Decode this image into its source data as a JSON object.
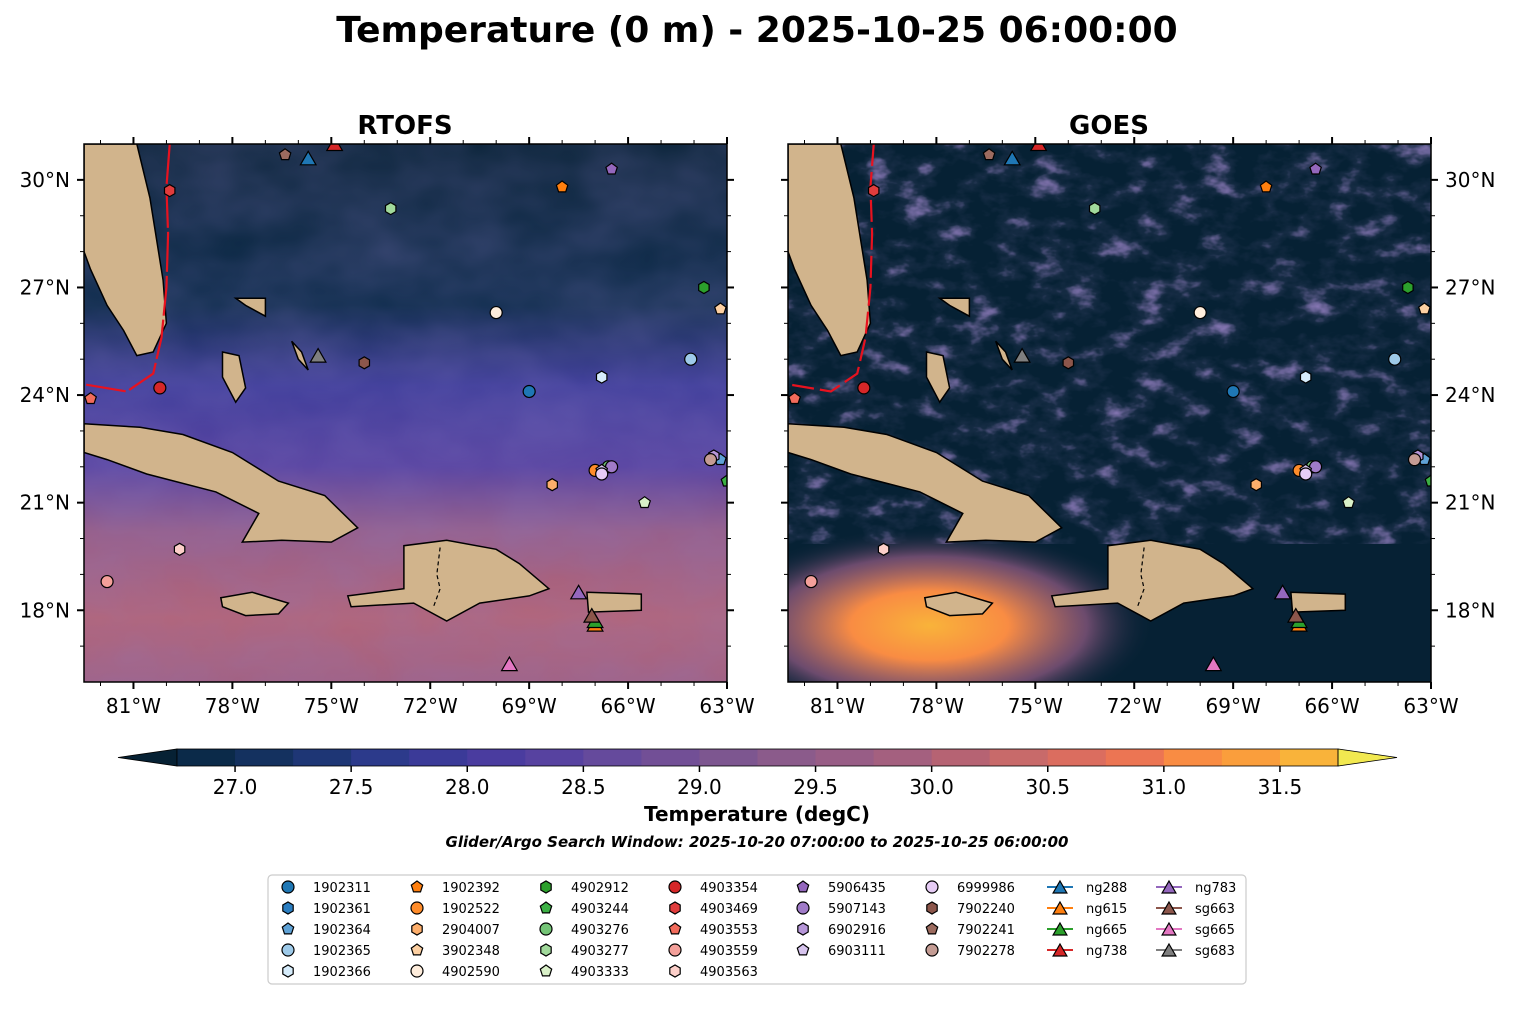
{
  "figure": {
    "title": "Temperature (0 m) - 2025-10-25 06:00:00",
    "search_window": "Glider/Argo Search Window: 2025-10-20 07:00:00 to 2025-10-25 06:00:00"
  },
  "chart_data": {
    "type": "heatmap",
    "panels": [
      {
        "title": "RTOFS",
        "lon_tick_labels": [
          "81°W",
          "78°W",
          "75°W",
          "72°W",
          "69°W",
          "66°W",
          "63°W"
        ],
        "lat_tick_labels": [
          "30°N",
          "27°N",
          "24°N",
          "21°N",
          "18°N"
        ],
        "lat_label_side": "left"
      },
      {
        "title": "GOES",
        "lon_tick_labels": [
          "81°W",
          "78°W",
          "75°W",
          "72°W",
          "69°W",
          "66°W",
          "63°W"
        ],
        "lat_tick_labels": [
          "30°N",
          "27°N",
          "24°N",
          "21°N",
          "18°N"
        ],
        "lat_label_side": "right"
      }
    ],
    "lon_range": [
      -82.5,
      -63.0
    ],
    "lat_range": [
      16.0,
      31.0
    ],
    "lon_ticks": [
      -81,
      -78,
      -75,
      -72,
      -69,
      -66,
      -63
    ],
    "lat_ticks": [
      30,
      27,
      24,
      21,
      18
    ],
    "colorbar": {
      "label": "Temperature (degC)",
      "vmin": 26.75,
      "vmax": 31.75,
      "step": 0.25,
      "extend": "both",
      "tick_values": [
        27.0,
        27.5,
        28.0,
        28.5,
        29.0,
        29.5,
        30.0,
        30.5,
        31.0,
        31.5
      ],
      "tick_labels": [
        "27.0",
        "27.5",
        "28.0",
        "28.5",
        "29.0",
        "29.5",
        "30.0",
        "30.5",
        "31.0",
        "31.5"
      ],
      "colors": [
        "#062134",
        "#0b2a49",
        "#14315f",
        "#1e3675",
        "#2c3a8b",
        "#3b3a98",
        "#4a3c9f",
        "#5742a0",
        "#654a9c",
        "#724f96",
        "#7d5690",
        "#8b5b8b",
        "#985d86",
        "#a4607f",
        "#b66373",
        "#c86a6a",
        "#db6d5f",
        "#ec7553",
        "#f98c43",
        "#fa9e3c",
        "#f9b33a",
        "#f7c83e",
        "#f4dc46",
        "#f2e950"
      ]
    },
    "floats": [
      {
        "id": "1902311",
        "lon": -69.0,
        "lat": 24.1,
        "marker": "circle",
        "color": "#1f77b4"
      },
      {
        "id": "1902361",
        "lon": -62.8,
        "lat": 22.3,
        "marker": "hexagon",
        "color": "#2b7ec1"
      },
      {
        "id": "1902364",
        "lon": -63.2,
        "lat": 22.2,
        "marker": "pentagon",
        "color": "#5fa2d6"
      },
      {
        "id": "1902365",
        "lon": -64.1,
        "lat": 25.0,
        "marker": "circle",
        "color": "#9ecae9"
      },
      {
        "id": "1902366",
        "lon": -66.8,
        "lat": 24.5,
        "marker": "hexagon",
        "color": "#d6ecfb"
      },
      {
        "id": "1902392",
        "lon": -68.0,
        "lat": 29.8,
        "marker": "pentagon",
        "color": "#ff7f0e"
      },
      {
        "id": "1902522",
        "lon": -67.0,
        "lat": 21.9,
        "marker": "circle",
        "color": "#ff8c2a"
      },
      {
        "id": "2904007",
        "lon": -68.3,
        "lat": 21.5,
        "marker": "hexagon",
        "color": "#fdae6b"
      },
      {
        "id": "3902348",
        "lon": -63.2,
        "lat": 26.4,
        "marker": "pentagon",
        "color": "#fdd0a2"
      },
      {
        "id": "4902590",
        "lon": -70.0,
        "lat": 26.3,
        "marker": "circle",
        "color": "#feeddc"
      },
      {
        "id": "4902912",
        "lon": -63.7,
        "lat": 27.0,
        "marker": "hexagon",
        "color": "#2ca02c"
      },
      {
        "id": "4903244",
        "lon": -63.0,
        "lat": 21.6,
        "marker": "pentagon",
        "color": "#3cb044"
      },
      {
        "id": "4903276",
        "lon": -66.6,
        "lat": 22.0,
        "marker": "circle",
        "color": "#74c476"
      },
      {
        "id": "4903277",
        "lon": -73.2,
        "lat": 29.2,
        "marker": "hexagon",
        "color": "#a1d99b"
      },
      {
        "id": "4903333",
        "lon": -65.5,
        "lat": 21.0,
        "marker": "pentagon",
        "color": "#d9f0c8"
      },
      {
        "id": "4903354",
        "lon": -80.2,
        "lat": 24.2,
        "marker": "circle",
        "color": "#d62728"
      },
      {
        "id": "4903469",
        "lon": -79.9,
        "lat": 29.7,
        "marker": "hexagon",
        "color": "#e03c3c"
      },
      {
        "id": "4903553",
        "lon": -82.3,
        "lat": 23.9,
        "marker": "pentagon",
        "color": "#f26b5b"
      },
      {
        "id": "4903559",
        "lon": -81.8,
        "lat": 18.8,
        "marker": "circle",
        "color": "#f4a09a"
      },
      {
        "id": "4903563",
        "lon": -79.6,
        "lat": 19.7,
        "marker": "hexagon",
        "color": "#fccfc9"
      },
      {
        "id": "5906435",
        "lon": -66.5,
        "lat": 30.3,
        "marker": "pentagon",
        "color": "#9467bd"
      },
      {
        "id": "5907143",
        "lon": -66.5,
        "lat": 22.0,
        "marker": "circle",
        "color": "#a07bc8"
      },
      {
        "id": "6902916",
        "lon": -63.4,
        "lat": 22.3,
        "marker": "hexagon",
        "color": "#b696d8"
      },
      {
        "id": "6903111",
        "lon": -66.8,
        "lat": 21.9,
        "marker": "pentagon",
        "color": "#d7c4ee"
      },
      {
        "id": "6999986",
        "lon": -66.8,
        "lat": 21.8,
        "marker": "circle",
        "color": "#e6ccf5"
      },
      {
        "id": "7902240",
        "lon": -74.0,
        "lat": 24.9,
        "marker": "hexagon",
        "color": "#8c564b"
      },
      {
        "id": "7902241",
        "lon": -76.4,
        "lat": 30.7,
        "marker": "pentagon",
        "color": "#9c6b5f"
      },
      {
        "id": "7902278",
        "lon": -63.5,
        "lat": 22.2,
        "marker": "circle",
        "color": "#c49c94"
      }
    ],
    "gliders": [
      {
        "id": "ng288",
        "lon": -75.7,
        "lat": 30.6,
        "color": "#1f77b4"
      },
      {
        "id": "ng615",
        "lon": -67.0,
        "lat": 17.6,
        "color": "#ff7f0e"
      },
      {
        "id": "ng665",
        "lon": -67.0,
        "lat": 17.7,
        "color": "#2ca02c"
      },
      {
        "id": "ng738",
        "lon": -74.9,
        "lat": 31.0,
        "color": "#d62728"
      },
      {
        "id": "ng783",
        "lon": -67.5,
        "lat": 18.5,
        "color": "#9467bd"
      },
      {
        "id": "sg663",
        "lon": -67.1,
        "lat": 17.85,
        "color": "#8c564b"
      },
      {
        "id": "sg665",
        "lon": -69.6,
        "lat": 16.5,
        "color": "#e377c2"
      },
      {
        "id": "sg683",
        "lon": -75.4,
        "lat": 25.1,
        "color": "#7f7f7f"
      }
    ],
    "legend": {
      "columns": [
        [
          "1902311",
          "1902361",
          "1902364",
          "1902365",
          "1902366"
        ],
        [
          "1902392",
          "1902522",
          "2904007",
          "3902348",
          "4902590"
        ],
        [
          "4902912",
          "4903244",
          "4903276",
          "4903277",
          "4903333"
        ],
        [
          "4903354",
          "4903469",
          "4903553",
          "4903559",
          "4903563"
        ],
        [
          "5906435",
          "5907143",
          "6902916",
          "6903111"
        ],
        [
          "6999986",
          "7902240",
          "7902241",
          "7902278"
        ],
        [
          "ng288",
          "ng615",
          "ng665",
          "ng738"
        ],
        [
          "ng783",
          "sg663",
          "sg665",
          "sg683"
        ]
      ]
    }
  }
}
